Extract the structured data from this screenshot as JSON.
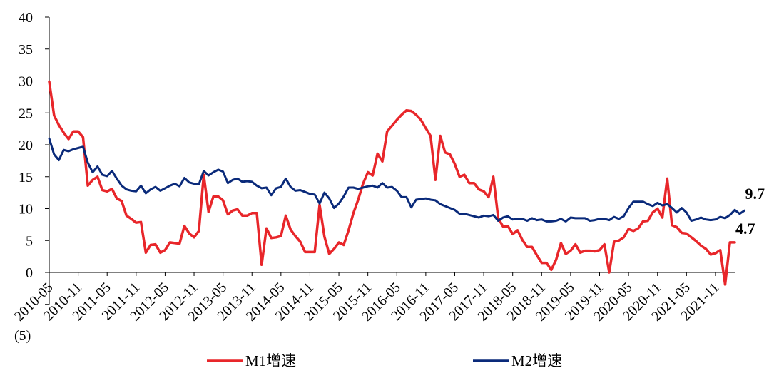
{
  "chart_data": {
    "type": "line",
    "title": "",
    "xlabel": "",
    "ylabel": "",
    "ylim": [
      -5,
      40
    ],
    "y_ticks": [
      -5,
      0,
      5,
      10,
      15,
      20,
      25,
      30,
      35,
      40
    ],
    "y_tick_labels": [
      "(5)",
      "0",
      "5",
      "10",
      "15",
      "20",
      "25",
      "30",
      "35",
      "40"
    ],
    "x_tick_labels": [
      "2010-05",
      "2010-11",
      "2011-05",
      "2011-11",
      "2012-05",
      "2012-11",
      "2013-05",
      "2013-11",
      "2014-05",
      "2014-11",
      "2015-05",
      "2015-11",
      "2016-05",
      "2016-11",
      "2017-05",
      "2017-11",
      "2018-05",
      "2018-11",
      "2019-05",
      "2019-11",
      "2020-05",
      "2020-11",
      "2021-05",
      "2021-11"
    ],
    "legend_position": "bottom",
    "series": [
      {
        "name": "M1增速",
        "color": "#e8262a",
        "values": [
          29.9,
          24.6,
          23.1,
          21.9,
          20.9,
          22.1,
          22.1,
          21.2,
          13.6,
          14.5,
          15.0,
          12.9,
          12.7,
          13.1,
          11.6,
          11.2,
          8.9,
          8.4,
          7.8,
          7.9,
          3.1,
          4.3,
          4.4,
          3.1,
          3.5,
          4.7,
          4.6,
          4.5,
          7.3,
          6.1,
          5.5,
          6.5,
          15.3,
          9.5,
          11.9,
          11.9,
          11.3,
          9.1,
          9.7,
          9.9,
          8.9,
          8.9,
          9.3,
          9.3,
          1.2,
          6.9,
          5.4,
          5.5,
          5.7,
          8.9,
          6.7,
          5.7,
          4.8,
          3.2,
          3.2,
          3.2,
          10.6,
          5.6,
          2.9,
          3.7,
          4.7,
          4.3,
          6.6,
          9.3,
          11.4,
          13.9,
          15.7,
          15.2,
          18.6,
          17.4,
          22.1,
          23.0,
          23.9,
          24.7,
          25.4,
          25.3,
          24.7,
          23.9,
          22.6,
          21.4,
          14.5,
          21.4,
          18.8,
          18.5,
          17.0,
          15.0,
          15.3,
          14.0,
          14.0,
          13.0,
          12.7,
          11.8,
          15.0,
          8.5,
          7.2,
          7.3,
          6.0,
          6.6,
          5.1,
          4.0,
          4.0,
          2.7,
          1.5,
          1.5,
          0.4,
          2.0,
          4.6,
          2.9,
          3.4,
          4.4,
          3.1,
          3.4,
          3.4,
          3.3,
          3.5,
          4.4,
          0.0,
          4.8,
          5.0,
          5.5,
          6.8,
          6.5,
          6.9,
          8.0,
          8.1,
          9.4,
          10.0,
          8.6,
          14.7,
          7.4,
          7.1,
          6.2,
          6.1,
          5.5,
          4.9,
          4.2,
          3.7,
          2.8,
          3.0,
          3.5,
          -1.9,
          4.7,
          4.7
        ]
      },
      {
        "name": "M2增速",
        "color": "#0a2a7a",
        "values": [
          21.0,
          18.5,
          17.6,
          19.2,
          19.0,
          19.3,
          19.5,
          19.7,
          17.2,
          15.7,
          16.6,
          15.3,
          15.1,
          15.9,
          14.7,
          13.6,
          13.0,
          12.8,
          12.7,
          13.6,
          12.4,
          13.0,
          13.4,
          12.8,
          13.2,
          13.6,
          13.9,
          13.5,
          14.8,
          14.1,
          13.9,
          13.8,
          15.9,
          15.2,
          15.7,
          16.1,
          15.8,
          14.0,
          14.5,
          14.7,
          14.2,
          14.3,
          14.2,
          13.6,
          13.2,
          13.3,
          12.1,
          13.2,
          13.4,
          14.7,
          13.4,
          12.8,
          12.9,
          12.6,
          12.3,
          12.2,
          10.8,
          12.5,
          11.6,
          10.1,
          10.8,
          11.9,
          13.3,
          13.3,
          13.1,
          13.3,
          13.5,
          13.6,
          13.3,
          14.0,
          13.3,
          13.4,
          12.8,
          11.8,
          11.8,
          10.2,
          11.4,
          11.5,
          11.6,
          11.4,
          11.3,
          10.7,
          10.4,
          10.1,
          9.8,
          9.2,
          9.2,
          9.0,
          8.8,
          8.6,
          8.9,
          8.8,
          9.0,
          8.1,
          8.6,
          8.8,
          8.3,
          8.4,
          8.4,
          8.1,
          8.5,
          8.2,
          8.3,
          8.0,
          8.0,
          8.1,
          8.4,
          8.0,
          8.6,
          8.5,
          8.5,
          8.5,
          8.1,
          8.2,
          8.4,
          8.4,
          8.2,
          8.7,
          8.4,
          8.8,
          10.1,
          11.1,
          11.1,
          11.1,
          10.7,
          10.4,
          10.9,
          10.5,
          10.7,
          10.1,
          9.4,
          10.1,
          9.4,
          8.1,
          8.3,
          8.6,
          8.3,
          8.2,
          8.3,
          8.7,
          8.5,
          9.0,
          9.8,
          9.2,
          9.7
        ]
      }
    ],
    "annotations": [
      {
        "series": "M2增速",
        "text": "9.7",
        "value": 9.7
      },
      {
        "series": "M1增速",
        "text": "4.7",
        "value": 4.7
      }
    ]
  }
}
